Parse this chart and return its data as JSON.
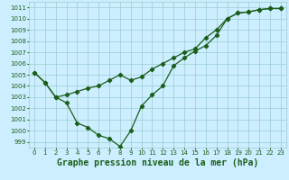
{
  "title": "Graphe pression niveau de la mer (hPa)",
  "xlim": [
    -0.5,
    23.5
  ],
  "ylim": [
    998.5,
    1011.5
  ],
  "xticks": [
    0,
    1,
    2,
    3,
    4,
    5,
    6,
    7,
    8,
    9,
    10,
    11,
    12,
    13,
    14,
    15,
    16,
    17,
    18,
    19,
    20,
    21,
    22,
    23
  ],
  "yticks": [
    999,
    1000,
    1001,
    1002,
    1003,
    1004,
    1005,
    1006,
    1007,
    1008,
    1009,
    1010,
    1011
  ],
  "background_color": "#cceeff",
  "grid_color": "#99cccc",
  "line_color": "#1a5e1a",
  "line1_x": [
    0,
    1,
    2,
    3,
    4,
    5,
    6,
    7,
    8,
    9,
    10,
    11,
    12,
    13,
    14,
    15,
    16,
    17,
    18,
    19,
    20,
    21,
    22,
    23
  ],
  "line1_y": [
    1005.2,
    1004.3,
    1003.0,
    1003.2,
    1003.5,
    1003.8,
    1004.0,
    1004.5,
    1005.0,
    1004.5,
    1004.8,
    1005.5,
    1006.0,
    1006.5,
    1007.0,
    1007.3,
    1008.3,
    1009.0,
    1010.0,
    1010.5,
    1010.6,
    1010.8,
    1010.9,
    1010.9
  ],
  "line2_x": [
    0,
    1,
    2,
    3,
    4,
    5,
    6,
    7,
    8,
    9,
    10,
    11,
    12,
    13,
    14,
    15,
    16,
    17,
    18,
    19,
    20,
    21,
    22,
    23
  ],
  "line2_y": [
    1005.2,
    1004.3,
    1003.0,
    1002.5,
    1000.7,
    1000.3,
    999.6,
    999.3,
    998.6,
    1000.0,
    1002.2,
    1003.2,
    1004.0,
    1005.8,
    1006.5,
    1007.1,
    1007.6,
    1008.5,
    1010.0,
    1010.5,
    1010.6,
    1010.8,
    1010.9,
    1010.9
  ],
  "marker": "D",
  "marker_size": 2.2,
  "line_width": 0.9,
  "title_fontsize": 7,
  "tick_fontsize": 5,
  "xlabel_color": "#1a5e1a"
}
